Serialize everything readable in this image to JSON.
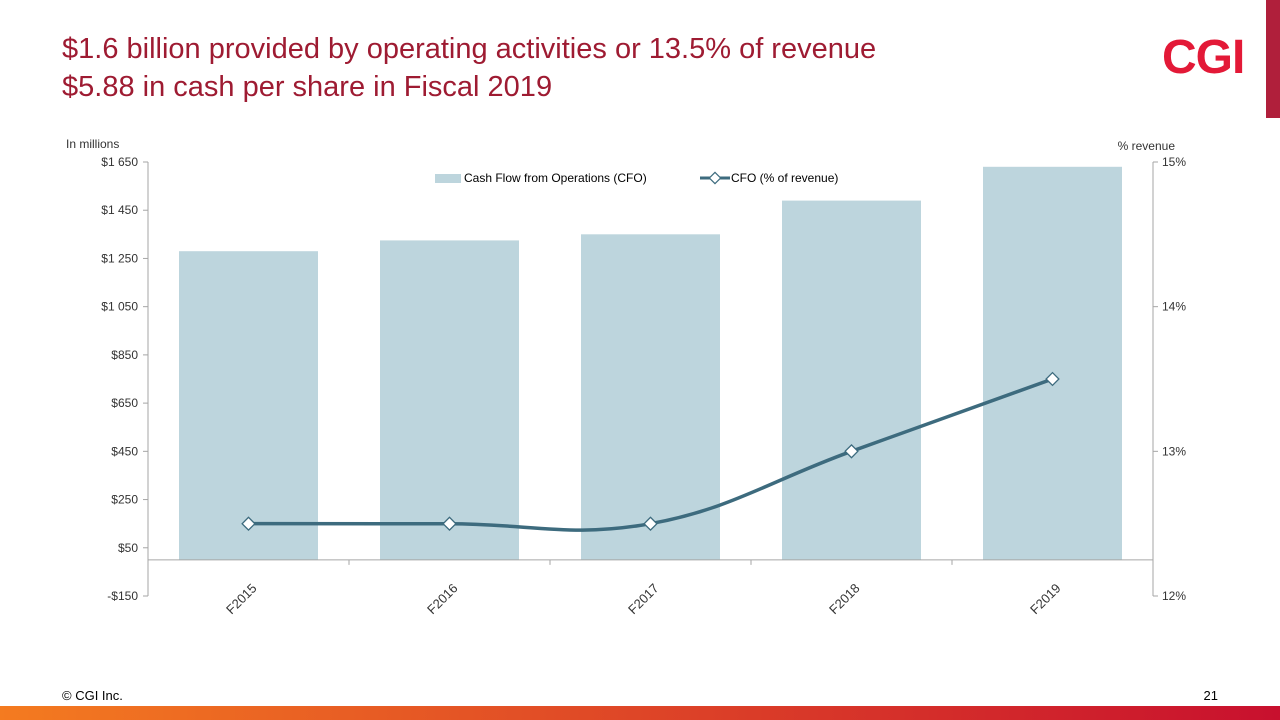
{
  "slide": {
    "title_line1": "$1.6 billion provided by operating activities or 13.5% of revenue",
    "title_line2": "$5.88 in cash per share in Fiscal 2019",
    "logo_text": "CGI",
    "footer_copyright": "© CGI Inc.",
    "page_number": "21"
  },
  "colors": {
    "title": "#9e1b32",
    "logo": "#e31937",
    "bar": "#bdd5dd",
    "line": "#3d6b7e",
    "band_left": "#f47b20",
    "band_right": "#c8102e",
    "side_bar": "#b01f3b"
  },
  "chart_data": {
    "type": "bar",
    "categories": [
      "F2015",
      "F2016",
      "F2017",
      "F2018",
      "F2019"
    ],
    "y_axis_label": "In millions",
    "y2_axis_label": "% revenue",
    "ylim": [
      -150,
      1650
    ],
    "yticks": [
      -150,
      50,
      250,
      450,
      650,
      850,
      1050,
      1250,
      1450,
      1650
    ],
    "ytick_labels": [
      "-$150",
      "$50",
      "$250",
      "$450",
      "$650",
      "$850",
      "$1 050",
      "$1 250",
      "$1 450",
      "$1 650"
    ],
    "y2lim": [
      12,
      15
    ],
    "y2ticks": [
      12,
      13,
      14,
      15
    ],
    "y2tick_labels": [
      "12%",
      "13%",
      "14%",
      "15%"
    ],
    "grid": false,
    "legend_position": "top",
    "series": [
      {
        "name": "Cash Flow from Operations (CFO)",
        "type": "bar",
        "axis": "left",
        "values": [
          1280,
          1325,
          1350,
          1490,
          1630
        ]
      },
      {
        "name": "CFO (% of revenue)",
        "type": "line",
        "axis": "right",
        "values": [
          12.5,
          12.5,
          12.5,
          13.0,
          13.5
        ]
      }
    ]
  }
}
